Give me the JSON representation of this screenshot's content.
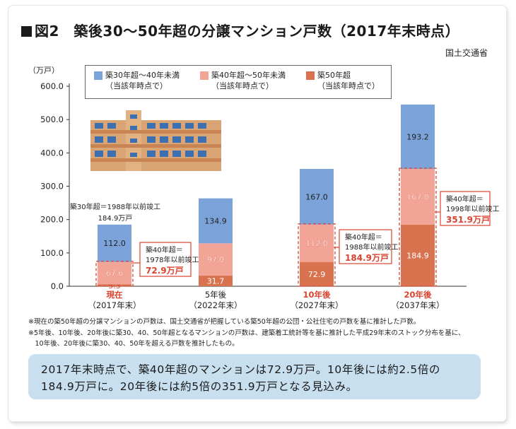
{
  "title": "図2　築後30〜50年超の分譲マンション戸数（2017年末時点）",
  "source": "国土交通省",
  "unit_label": "（万戸）",
  "legend": [
    {
      "line1": "築30年超〜40年未満",
      "line2": "（当該年時点で）",
      "color": "#7ba3d9"
    },
    {
      "line1": "築40年超〜50年未満",
      "line2": "（当該年時点で）",
      "color": "#f2a497"
    },
    {
      "line1": "築50年超",
      "line2": "（当該年時点で）",
      "color": "#d9724f"
    }
  ],
  "chart_data": {
    "type": "bar",
    "stacked": true,
    "categories": [
      {
        "line1": "現在",
        "line2": "（2017年末）",
        "highlight": true
      },
      {
        "line1": "5年後",
        "line2": "（2022年末）",
        "highlight": false
      },
      {
        "line1": "10年後",
        "line2": "（2027年末）",
        "highlight": true
      },
      {
        "line1": "20年後",
        "line2": "（2037年末）",
        "highlight": true
      }
    ],
    "series": [
      {
        "name": "築50年超",
        "values": [
          5.3,
          31.7,
          72.9,
          184.9
        ],
        "labels": [
          "5.3",
          "31.7",
          "72.9",
          "184.9"
        ],
        "color": "#d9724f"
      },
      {
        "name": "築40年超〜50年未満",
        "values": [
          67.6,
          97.0,
          112.0,
          167.0
        ],
        "labels": [
          "67.6",
          "97.0",
          "112.0",
          "167.0"
        ],
        "color": "#f2a497"
      },
      {
        "name": "築30年超〜40年未満",
        "values": [
          112.0,
          134.9,
          167.0,
          193.2
        ],
        "labels": [
          "112.0",
          "134.9",
          "167.0",
          "193.2"
        ],
        "color": "#7ba3d9"
      }
    ],
    "yticks": [
      "600.0",
      "500.0",
      "400.0",
      "300.0",
      "200.0",
      "100.0",
      "0.0"
    ],
    "ylim": [
      0,
      600
    ],
    "grid": false
  },
  "callouts": [
    {
      "line1": "築30年超＝1988年以前竣工",
      "line2": "184.9万戸"
    },
    {
      "line1": "築40年超＝",
      "line2": "1978年以前竣工",
      "line3": "72.9万戸"
    },
    {
      "line1": "築40年超＝",
      "line2": "1988年以前竣工",
      "line3": "184.9万戸"
    },
    {
      "line1": "築40年超＝",
      "line2": "1998年以前竣工",
      "line3": "351.9万戸"
    }
  ],
  "notes": [
    "※現在の築50年超の分譲マンションの戸数は、国土交通省が把握している築50年超の公団・公社住宅の戸数を基に推計した戸数。",
    "※5年後、10年後、20年後に築30、40、50年超となるマンションの戸数は、建築着工統計等を基に推計した平成29年末のストック分布を基に、",
    "　10年後、20年後に築30、40、50年を超える戸数を推計したもの。"
  ],
  "summary": [
    "2017年末時点で、築40年超のマンションは72.9万戸。10年後には約2.5倍の",
    "184.9万戸に。20年後には約5倍の351.9万戸となる見込み。"
  ],
  "colors": {
    "accent_red": "#d9432f",
    "dash": "#d9432f"
  }
}
